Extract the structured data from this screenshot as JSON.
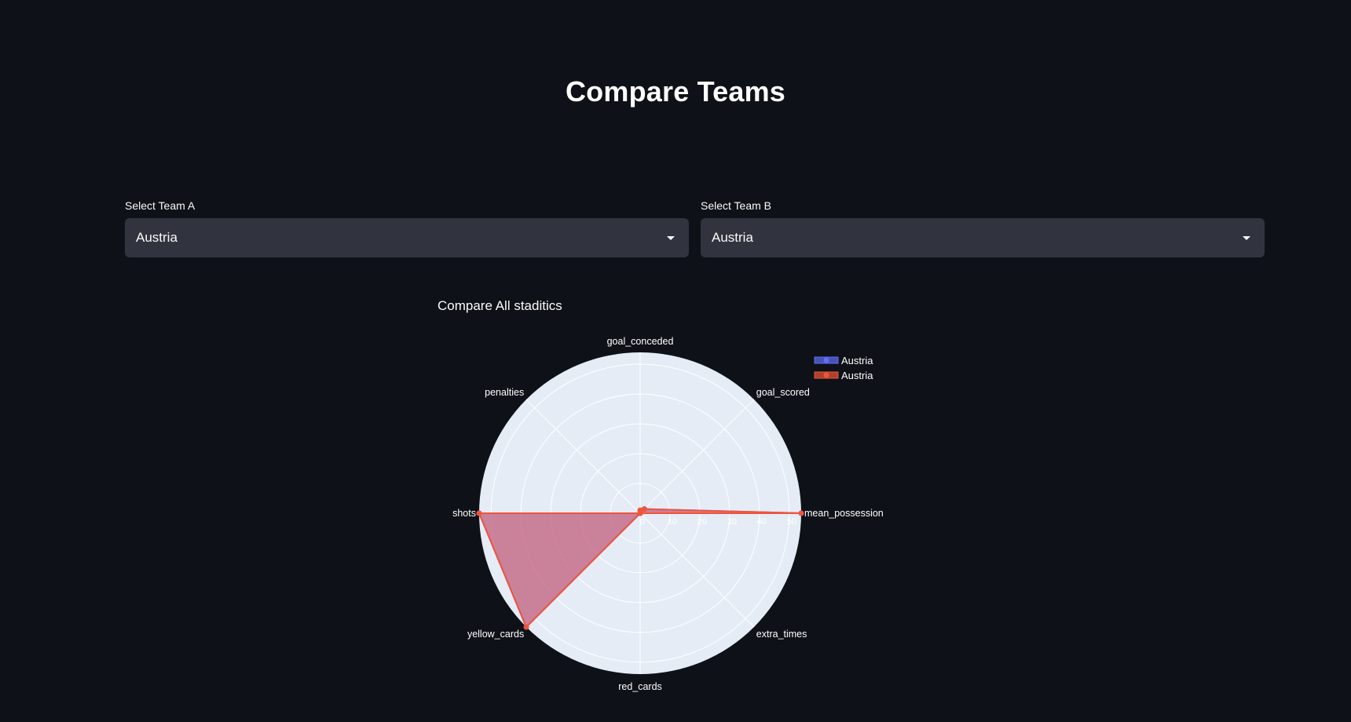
{
  "page": {
    "title": "Compare Teams"
  },
  "team_a": {
    "label": "Select Team A",
    "value": "Austria"
  },
  "team_b": {
    "label": "Select Team B",
    "value": "Austria"
  },
  "chart_data": {
    "type": "radar",
    "title": "Compare All staditics",
    "categories": [
      "mean_possession",
      "goal_scored",
      "goal_conceded",
      "penalties",
      "shots",
      "yellow_cards",
      "red_cards",
      "extra_times"
    ],
    "radial_range": [
      0,
      54
    ],
    "radial_ticks": [
      0,
      10,
      20,
      30,
      40,
      50
    ],
    "legend_position": "top-right",
    "series": [
      {
        "name": "Austria",
        "color": "#636efa",
        "values": [
          54,
          2,
          1,
          0,
          54,
          54,
          0,
          0
        ]
      },
      {
        "name": "Austria",
        "color": "#ef553b",
        "values": [
          54,
          2,
          1,
          0,
          54,
          54,
          0,
          0
        ]
      }
    ]
  }
}
